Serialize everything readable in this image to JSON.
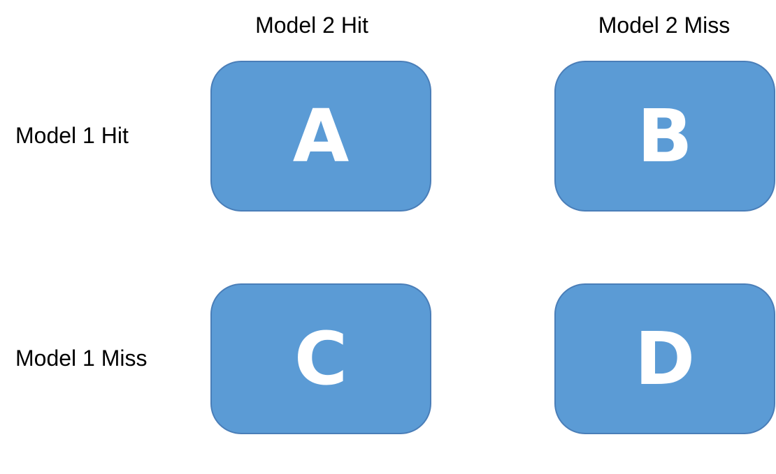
{
  "column_headers": [
    "Model 2 Hit",
    "Model 2 Miss"
  ],
  "row_headers": [
    "Model 1 Hit",
    "Model 1 Miss"
  ],
  "cells": [
    {
      "label": "A"
    },
    {
      "label": "B"
    },
    {
      "label": "C"
    },
    {
      "label": "D"
    }
  ],
  "colors": {
    "cell_fill": "#5b9bd5",
    "cell_border": "#4a7eb8",
    "cell_text": "#ffffff",
    "header_text": "#000000"
  }
}
